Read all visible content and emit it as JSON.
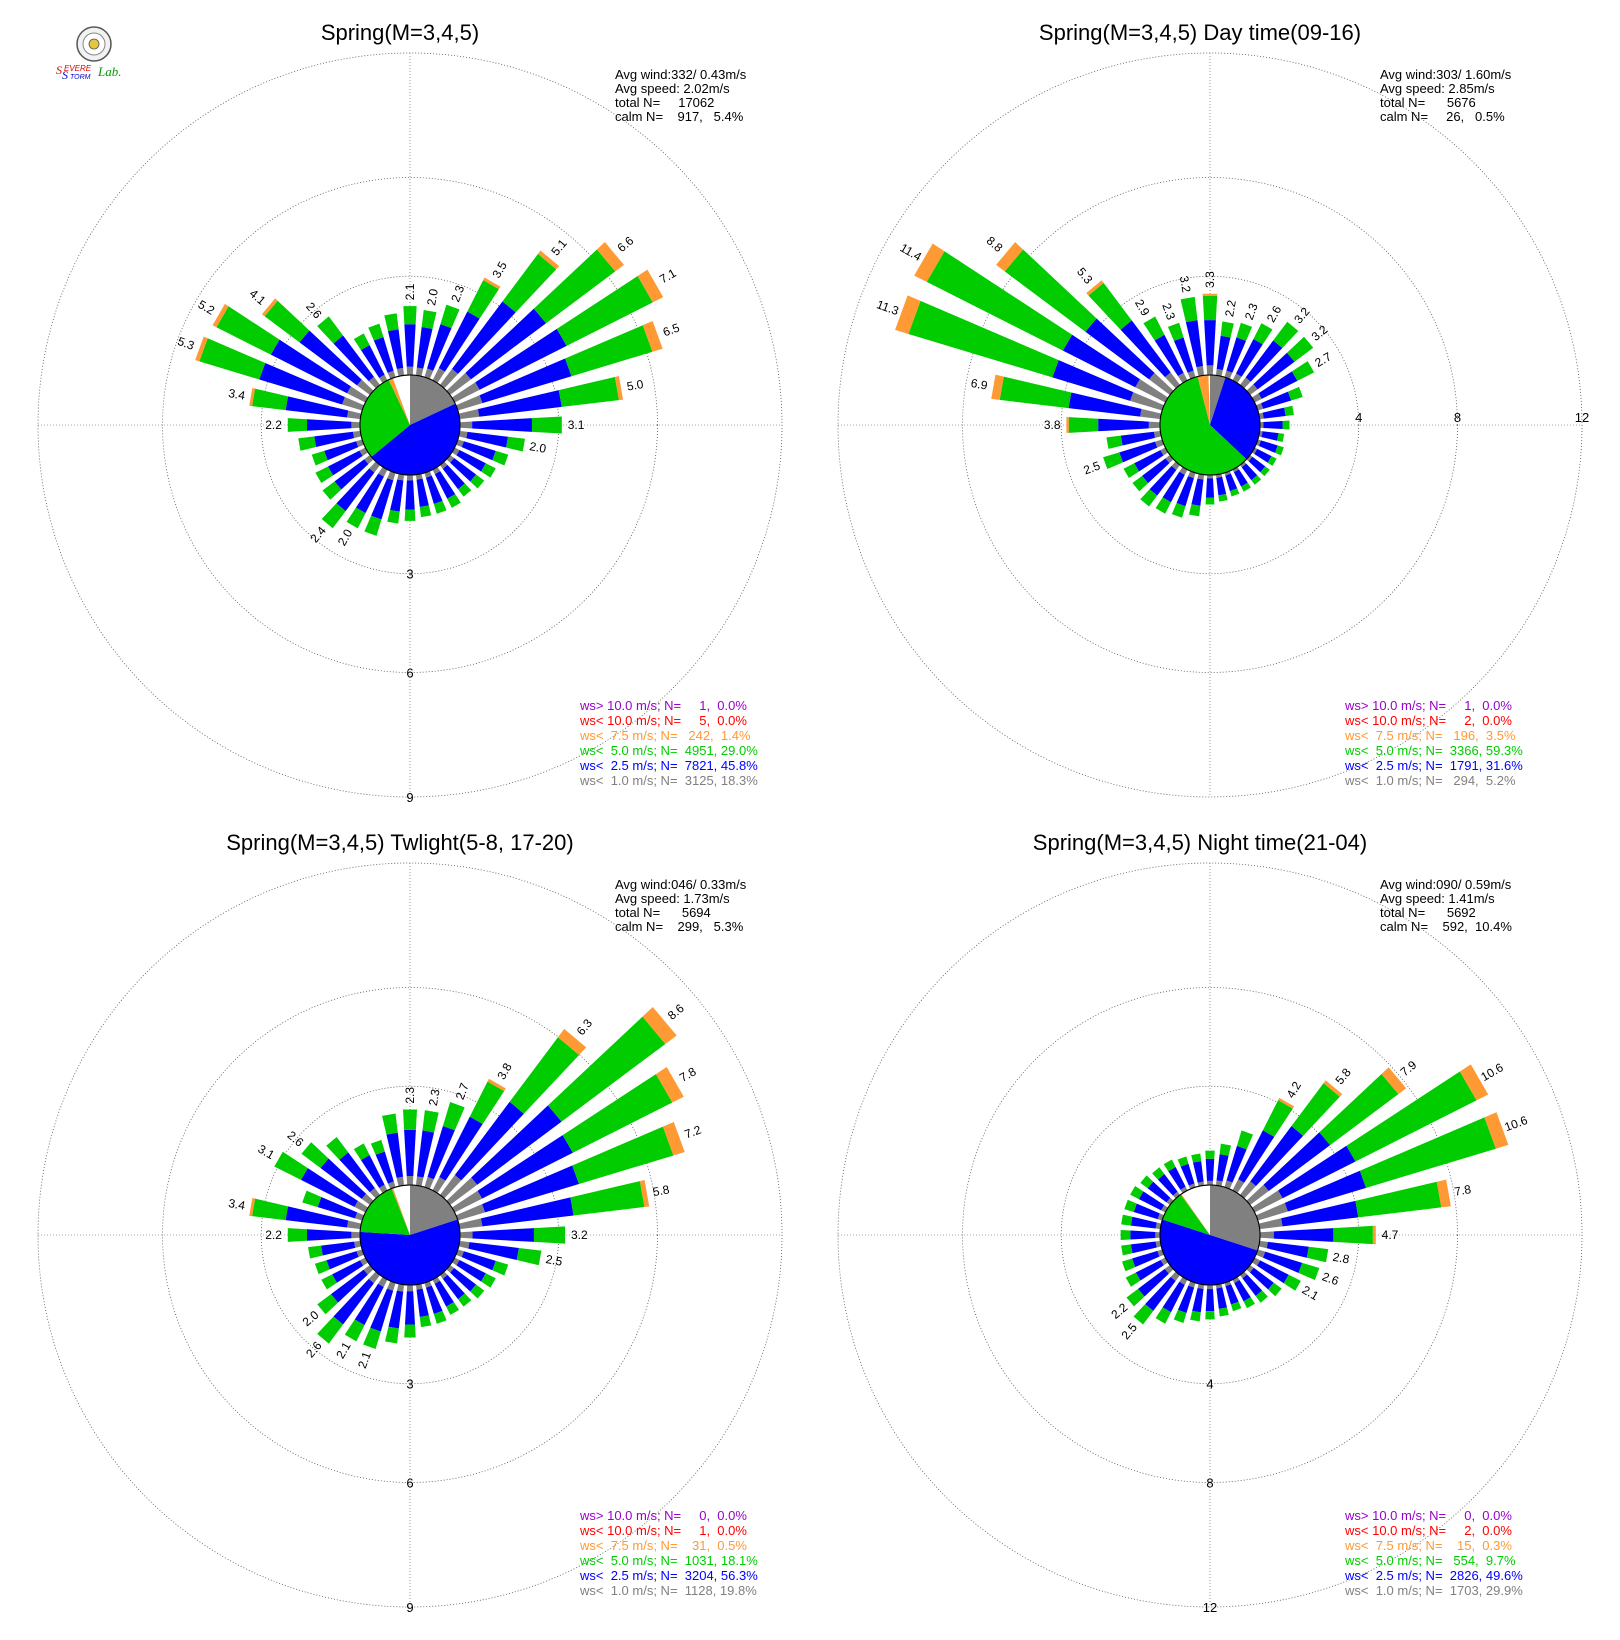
{
  "logo": {
    "text_severe": "Severe",
    "text_storm": "Storm",
    "text_lab": "Lab."
  },
  "colors": {
    "calm": "#ffffff",
    "lt1": "#808080",
    "lt2_5": "#0000ff",
    "lt5": "#00cc00",
    "lt7_5": "#ff9933",
    "lt10": "#ff0000",
    "gt10": "#9900cc"
  },
  "chart_data": [
    {
      "type": "wind_rose",
      "title": "Spring(M=3,4,5)",
      "stats": [
        "Avg wind:332/ 0.43m/s",
        "Avg speed: 2.02m/s",
        "total N=     17062",
        "calm N=    917,   5.4%"
      ],
      "rings": [
        3,
        6,
        9
      ],
      "calm_fraction_by_class": {
        "lt1": 0.18,
        "lt2_5": 0.46,
        "lt5": 0.29,
        "lt7_5": 0.014
      },
      "legend": [
        {
          "text": "ws> 10.0 m/s; N=     1,  0.0%",
          "color": "#9900cc"
        },
        {
          "text": "ws< 10.0 m/s; N=     5,  0.0%",
          "color": "#ff0000"
        },
        {
          "text": "ws<  7.5 m/s; N=   242,  1.4%",
          "color": "#ff9933"
        },
        {
          "text": "ws<  5.0 m/s; N=  4951, 29.0%",
          "color": "#00cc00"
        },
        {
          "text": "ws<  2.5 m/s; N=  7821, 45.8%",
          "color": "#0000ff"
        },
        {
          "text": "ws<  1.0 m/s; N=  3125, 18.3%",
          "color": "#808080"
        }
      ],
      "sectors": [
        {
          "dir": 0,
          "total": 2.1,
          "label": "2.1"
        },
        {
          "dir": 10,
          "total": 2.0,
          "label": "2.0"
        },
        {
          "dir": 20,
          "total": 2.3,
          "label": "2.3"
        },
        {
          "dir": 30,
          "total": 3.5,
          "label": "3.5"
        },
        {
          "dir": 40,
          "total": 5.1,
          "label": "5.1"
        },
        {
          "dir": 50,
          "total": 6.6,
          "label": "6.6"
        },
        {
          "dir": 60,
          "total": 7.1,
          "label": "7.1"
        },
        {
          "dir": 70,
          "total": 6.5,
          "label": "6.5"
        },
        {
          "dir": 80,
          "total": 5.0,
          "label": "5.0"
        },
        {
          "dir": 90,
          "total": 3.1,
          "label": "3.1"
        },
        {
          "dir": 100,
          "total": 2.0,
          "label": "2.0"
        },
        {
          "dir": 110,
          "total": 1.6
        },
        {
          "dir": 120,
          "total": 1.4
        },
        {
          "dir": 130,
          "total": 1.3
        },
        {
          "dir": 140,
          "total": 1.2
        },
        {
          "dir": 150,
          "total": 1.3
        },
        {
          "dir": 160,
          "total": 1.3
        },
        {
          "dir": 170,
          "total": 1.3
        },
        {
          "dir": 180,
          "total": 1.4
        },
        {
          "dir": 190,
          "total": 1.5
        },
        {
          "dir": 200,
          "total": 2.0
        },
        {
          "dir": 210,
          "total": 2.0,
          "label": "2.0"
        },
        {
          "dir": 220,
          "total": 2.4,
          "label": "2.4"
        },
        {
          "dir": 230,
          "total": 1.8
        },
        {
          "dir": 240,
          "total": 1.7
        },
        {
          "dir": 250,
          "total": 1.6
        },
        {
          "dir": 260,
          "total": 1.9
        },
        {
          "dir": 270,
          "total": 2.2,
          "label": "2.2"
        },
        {
          "dir": 280,
          "total": 3.4,
          "label": "3.4"
        },
        {
          "dir": 290,
          "total": 5.3,
          "label": "5.3"
        },
        {
          "dir": 300,
          "total": 5.2,
          "label": "5.2"
        },
        {
          "dir": 310,
          "total": 4.1,
          "label": "4.1"
        },
        {
          "dir": 320,
          "total": 2.6,
          "label": "2.6"
        },
        {
          "dir": 330,
          "total": 1.6
        },
        {
          "dir": 340,
          "total": 1.7
        },
        {
          "dir": 350,
          "total": 1.9
        }
      ]
    },
    {
      "type": "wind_rose",
      "title": "Spring(M=3,4,5) Day time(09-16)",
      "stats": [
        "Avg wind:303/ 1.60m/s",
        "Avg speed: 2.85m/s",
        "total N=      5676",
        "calm N=     26,   0.5%"
      ],
      "rings": [
        4,
        8,
        12
      ],
      "calm_fraction_by_class": {
        "lt1": 0.05,
        "lt2_5": 0.32,
        "lt5": 0.59,
        "lt7_5": 0.035
      },
      "legend": [
        {
          "text": "ws> 10.0 m/s; N=     1,  0.0%",
          "color": "#9900cc"
        },
        {
          "text": "ws< 10.0 m/s; N=     2,  0.0%",
          "color": "#ff0000"
        },
        {
          "text": "ws<  7.5 m/s; N=   196,  3.5%",
          "color": "#ff9933"
        },
        {
          "text": "ws<  5.0 m/s; N=  3366, 59.3%",
          "color": "#00cc00"
        },
        {
          "text": "ws<  2.5 m/s; N=  1791, 31.6%",
          "color": "#0000ff"
        },
        {
          "text": "ws<  1.0 m/s; N=   294,  5.2%",
          "color": "#808080"
        }
      ],
      "sectors": [
        {
          "dir": 0,
          "total": 3.3,
          "label": "3.3"
        },
        {
          "dir": 10,
          "total": 2.2,
          "label": "2.2"
        },
        {
          "dir": 20,
          "total": 2.3,
          "label": "2.3"
        },
        {
          "dir": 30,
          "total": 2.6,
          "label": "2.6"
        },
        {
          "dir": 40,
          "total": 3.2,
          "label": "3.2"
        },
        {
          "dir": 50,
          "total": 3.2,
          "label": "3.2"
        },
        {
          "dir": 60,
          "total": 2.7,
          "label": "2.7"
        },
        {
          "dir": 70,
          "total": 1.9
        },
        {
          "dir": 80,
          "total": 1.4
        },
        {
          "dir": 90,
          "total": 1.2
        },
        {
          "dir": 100,
          "total": 1.0
        },
        {
          "dir": 110,
          "total": 1.1
        },
        {
          "dir": 120,
          "total": 1.0
        },
        {
          "dir": 130,
          "total": 1.0
        },
        {
          "dir": 140,
          "total": 1.0
        },
        {
          "dir": 150,
          "total": 1.0
        },
        {
          "dir": 160,
          "total": 1.0
        },
        {
          "dir": 170,
          "total": 1.1
        },
        {
          "dir": 180,
          "total": 1.2
        },
        {
          "dir": 190,
          "total": 1.7
        },
        {
          "dir": 200,
          "total": 1.9
        },
        {
          "dir": 210,
          "total": 2.0
        },
        {
          "dir": 220,
          "total": 2.1
        },
        {
          "dir": 230,
          "total": 1.9
        },
        {
          "dir": 240,
          "total": 1.9
        },
        {
          "dir": 250,
          "total": 2.5,
          "label": "2.5"
        },
        {
          "dir": 260,
          "total": 2.2
        },
        {
          "dir": 270,
          "total": 3.8,
          "label": "3.8"
        },
        {
          "dir": 280,
          "total": 6.9,
          "label": "6.9"
        },
        {
          "dir": 290,
          "total": 11.3,
          "label": "11.3"
        },
        {
          "dir": 300,
          "total": 11.4,
          "label": "11.4"
        },
        {
          "dir": 310,
          "total": 8.8,
          "label": "8.8"
        },
        {
          "dir": 320,
          "total": 5.3,
          "label": "5.3"
        },
        {
          "dir": 330,
          "total": 2.9,
          "label": "2.9"
        },
        {
          "dir": 340,
          "total": 2.3,
          "label": "2.3"
        },
        {
          "dir": 350,
          "total": 3.2,
          "label": "3.2"
        }
      ]
    },
    {
      "type": "wind_rose",
      "title": "Spring(M=3,4,5) Twlight(5-8, 17-20)",
      "stats": [
        "Avg wind:046/ 0.33m/s",
        "Avg speed: 1.73m/s",
        "total N=      5694",
        "calm N=    299,   5.3%"
      ],
      "rings": [
        3,
        6,
        9
      ],
      "calm_fraction_by_class": {
        "lt1": 0.2,
        "lt2_5": 0.56,
        "lt5": 0.18,
        "lt7_5": 0.005
      },
      "legend": [
        {
          "text": "ws> 10.0 m/s; N=     0,  0.0%",
          "color": "#9900cc"
        },
        {
          "text": "ws< 10.0 m/s; N=     1,  0.0%",
          "color": "#ff0000"
        },
        {
          "text": "ws<  7.5 m/s; N=    31,  0.5%",
          "color": "#ff9933"
        },
        {
          "text": "ws<  5.0 m/s; N=  1031, 18.1%",
          "color": "#00cc00"
        },
        {
          "text": "ws<  2.5 m/s; N=  3204, 56.3%",
          "color": "#0000ff"
        },
        {
          "text": "ws<  1.0 m/s; N=  1128, 19.8%",
          "color": "#808080"
        }
      ],
      "sectors": [
        {
          "dir": 0,
          "total": 2.3,
          "label": "2.3"
        },
        {
          "dir": 10,
          "total": 2.3,
          "label": "2.3"
        },
        {
          "dir": 20,
          "total": 2.7,
          "label": "2.7"
        },
        {
          "dir": 30,
          "total": 3.8,
          "label": "3.8"
        },
        {
          "dir": 40,
          "total": 6.3,
          "label": "6.3"
        },
        {
          "dir": 50,
          "total": 8.6,
          "label": "8.6"
        },
        {
          "dir": 60,
          "total": 7.8,
          "label": "7.8"
        },
        {
          "dir": 70,
          "total": 7.2,
          "label": "7.2"
        },
        {
          "dir": 80,
          "total": 5.8,
          "label": "5.8"
        },
        {
          "dir": 90,
          "total": 3.2,
          "label": "3.2"
        },
        {
          "dir": 100,
          "total": 2.5,
          "label": "2.5"
        },
        {
          "dir": 110,
          "total": 1.6
        },
        {
          "dir": 120,
          "total": 1.4
        },
        {
          "dir": 130,
          "total": 1.3
        },
        {
          "dir": 140,
          "total": 1.2
        },
        {
          "dir": 150,
          "total": 1.2
        },
        {
          "dir": 160,
          "total": 1.3
        },
        {
          "dir": 170,
          "total": 1.3
        },
        {
          "dir": 180,
          "total": 1.6
        },
        {
          "dir": 190,
          "total": 1.8
        },
        {
          "dir": 200,
          "total": 2.1,
          "label": "2.1"
        },
        {
          "dir": 210,
          "total": 2.1,
          "label": "2.1"
        },
        {
          "dir": 220,
          "total": 2.6,
          "label": "2.6"
        },
        {
          "dir": 230,
          "total": 2.0,
          "label": "2.0"
        },
        {
          "dir": 240,
          "total": 1.5
        },
        {
          "dir": 250,
          "total": 1.5
        },
        {
          "dir": 260,
          "total": 1.6
        },
        {
          "dir": 270,
          "total": 2.2,
          "label": "2.2"
        },
        {
          "dir": 280,
          "total": 3.4,
          "label": "3.4"
        },
        {
          "dir": 290,
          "total": 1.9
        },
        {
          "dir": 300,
          "total": 3.1,
          "label": "3.1"
        },
        {
          "dir": 310,
          "total": 2.6,
          "label": "2.6"
        },
        {
          "dir": 320,
          "total": 2.2
        },
        {
          "dir": 330,
          "total": 1.6
        },
        {
          "dir": 340,
          "total": 1.5
        },
        {
          "dir": 350,
          "total": 2.2
        }
      ]
    },
    {
      "type": "wind_rose",
      "title": "Spring(M=3,4,5) Night time(21-04)",
      "stats": [
        "Avg wind:090/ 0.59m/s",
        "Avg speed: 1.41m/s",
        "total N=      5692",
        "calm N=    592,  10.4%"
      ],
      "rings": [
        4,
        8,
        12
      ],
      "calm_fraction_by_class": {
        "lt1": 0.3,
        "lt2_5": 0.5,
        "lt5": 0.1,
        "lt7_5": 0.003
      },
      "legend": [
        {
          "text": "ws> 10.0 m/s; N=     0,  0.0%",
          "color": "#9900cc"
        },
        {
          "text": "ws< 10.0 m/s; N=     2,  0.0%",
          "color": "#ff0000"
        },
        {
          "text": "ws<  7.5 m/s; N=    15,  0.3%",
          "color": "#ff9933"
        },
        {
          "text": "ws<  5.0 m/s; N=   554,  9.7%",
          "color": "#00cc00"
        },
        {
          "text": "ws<  2.5 m/s; N=  2826, 49.6%",
          "color": "#0000ff"
        },
        {
          "text": "ws<  1.0 m/s; N=  1703, 29.9%",
          "color": "#808080"
        }
      ],
      "sectors": [
        {
          "dir": 0,
          "total": 1.4
        },
        {
          "dir": 10,
          "total": 1.7
        },
        {
          "dir": 20,
          "total": 2.4
        },
        {
          "dir": 30,
          "total": 4.2,
          "label": "4.2"
        },
        {
          "dir": 40,
          "total": 5.8,
          "label": "5.8"
        },
        {
          "dir": 50,
          "total": 7.9,
          "label": "7.9"
        },
        {
          "dir": 60,
          "total": 10.6,
          "label": "10.6"
        },
        {
          "dir": 70,
          "total": 10.6,
          "label": "10.6"
        },
        {
          "dir": 80,
          "total": 7.8,
          "label": "7.8"
        },
        {
          "dir": 90,
          "total": 4.7,
          "label": "4.7"
        },
        {
          "dir": 100,
          "total": 2.8,
          "label": "2.8"
        },
        {
          "dir": 110,
          "total": 2.6,
          "label": "2.6"
        },
        {
          "dir": 120,
          "total": 2.1,
          "label": "2.1"
        },
        {
          "dir": 130,
          "total": 1.6
        },
        {
          "dir": 140,
          "total": 1.4
        },
        {
          "dir": 150,
          "total": 1.3
        },
        {
          "dir": 160,
          "total": 1.2
        },
        {
          "dir": 170,
          "total": 1.3
        },
        {
          "dir": 180,
          "total": 1.4
        },
        {
          "dir": 190,
          "total": 1.5
        },
        {
          "dir": 200,
          "total": 1.7
        },
        {
          "dir": 210,
          "total": 2.0
        },
        {
          "dir": 220,
          "total": 2.5,
          "label": "2.5"
        },
        {
          "dir": 230,
          "total": 2.2,
          "label": "2.2"
        },
        {
          "dir": 240,
          "total": 1.8
        },
        {
          "dir": 250,
          "total": 1.7
        },
        {
          "dir": 260,
          "total": 1.6
        },
        {
          "dir": 270,
          "total": 1.6
        },
        {
          "dir": 280,
          "total": 1.6
        },
        {
          "dir": 290,
          "total": 1.6
        },
        {
          "dir": 300,
          "total": 1.6
        },
        {
          "dir": 310,
          "total": 1.5
        },
        {
          "dir": 320,
          "total": 1.4
        },
        {
          "dir": 330,
          "total": 1.4
        },
        {
          "dir": 340,
          "total": 1.3
        },
        {
          "dir": 350,
          "total": 1.3
        }
      ]
    }
  ]
}
